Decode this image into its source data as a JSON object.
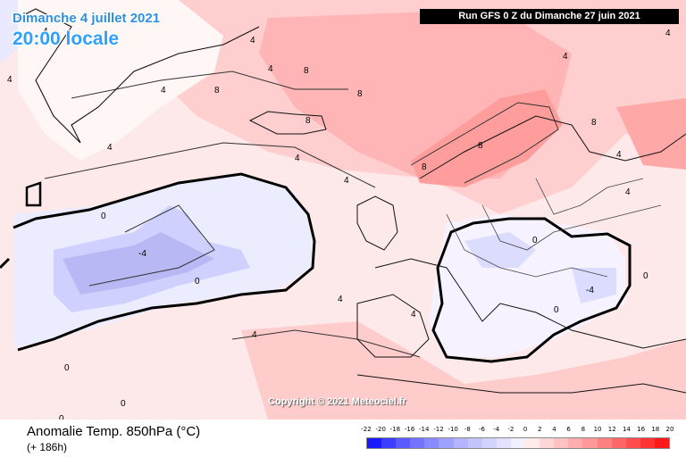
{
  "header": {
    "date": "Dimanche 4 juillet 2021",
    "time": "20:00 locale",
    "run": "Run GFS 0 Z du Dimanche 27 juin 2021"
  },
  "copyright": "Copyright © 2021 Meteociel.fr",
  "footer": {
    "variable": "Anomalie Temp. 850hPa (°C)",
    "forecast_hour": "(+ 186h)"
  },
  "legend": {
    "labels": [
      "-22",
      "-20",
      "-18",
      "-16",
      "-14",
      "-12",
      "-10",
      "-8",
      "-6",
      "-4",
      "-2",
      "0",
      "2",
      "4",
      "6",
      "8",
      "10",
      "12",
      "14",
      "16",
      "18",
      "20"
    ],
    "colors": [
      "#1a1aff",
      "#3d3dff",
      "#5a5aff",
      "#7373ff",
      "#8a8aff",
      "#a0a0ff",
      "#b3b3ff",
      "#c4c4ff",
      "#d3d3ff",
      "#e2e2ff",
      "#f0f0ff",
      "#ffeaea",
      "#ffd6d6",
      "#ffc2c2",
      "#ffadad",
      "#ff9999",
      "#ff8080",
      "#ff6666",
      "#ff4d4d",
      "#ff3333",
      "#ff1a1a"
    ]
  },
  "contour_labels": [
    "0",
    "4",
    "8",
    "-4"
  ]
}
